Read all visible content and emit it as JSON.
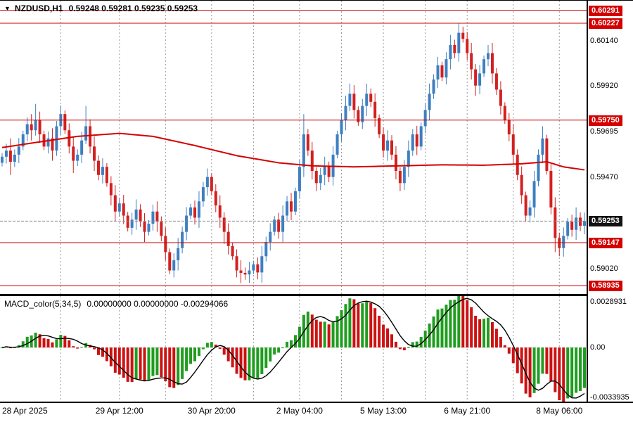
{
  "header": {
    "dropdown_icon": "▼",
    "symbol": "NZDUSD,H1",
    "ohlc": "0.59248 0.59281 0.59235 0.59253"
  },
  "macd_header": {
    "label": "MACD_color(5,34,5)",
    "values": "0.00000000 0.00000000 -0.00294066"
  },
  "colors": {
    "bull": "#3e7fc1",
    "bear": "#d32020",
    "ma": "#d40000",
    "level": "#c80000",
    "grid": "#9a9a9a",
    "hist_up": "#1f9d1f",
    "hist_down": "#cc1212",
    "signal": "#000000",
    "current_line": "#8a8a8a",
    "badge_red": "#d40000",
    "badge_black": "#121212"
  },
  "price_axis": [
    {
      "text": "0.60291",
      "value": 0.60291,
      "style": "badge-red"
    },
    {
      "text": "0.60227",
      "value": 0.60227,
      "style": "badge-red"
    },
    {
      "text": "0.60140",
      "value": 0.6014,
      "style": "plain"
    },
    {
      "text": "0.59920",
      "value": 0.5992,
      "style": "plain"
    },
    {
      "text": "0.59750",
      "value": 0.5975,
      "style": "badge-red"
    },
    {
      "text": "0.59695",
      "value": 0.59695,
      "style": "plain"
    },
    {
      "text": "0.59470",
      "value": 0.5947,
      "style": "plain"
    },
    {
      "text": "0.59253",
      "value": 0.59253,
      "style": "badge-black"
    },
    {
      "text": "0.59147",
      "value": 0.59147,
      "style": "badge-red"
    },
    {
      "text": "0.59020",
      "value": 0.5902,
      "style": "plain"
    },
    {
      "text": "0.58935",
      "value": 0.58935,
      "style": "badge-red"
    }
  ],
  "macd_axis": [
    {
      "text": "0.0028931",
      "value": 0.0028931
    },
    {
      "text": "0.00",
      "value": 0
    },
    {
      "text": "-0.0033935",
      "value": -0.0033935
    }
  ],
  "chart_data": {
    "type": "candlestick",
    "symbol": "NZDUSD",
    "timeframe": "H1",
    "indicators": [
      "MA (red)",
      "MACD_color(5,34,5)"
    ],
    "price_range": {
      "top": 0.60338,
      "bottom": 0.58894
    },
    "levels": [
      0.60291,
      0.60227,
      0.5975,
      0.59147,
      0.58935
    ],
    "current_price": 0.59253,
    "first_open": 0.5954,
    "closes": [
      0.5957,
      0.596,
      0.59545,
      0.5958,
      0.5962,
      0.5968,
      0.5973,
      0.597,
      0.5975,
      0.5968,
      0.5962,
      0.5966,
      0.596,
      0.5972,
      0.5978,
      0.597,
      0.5962,
      0.5955,
      0.5958,
      0.5965,
      0.5972,
      0.5962,
      0.5955,
      0.5948,
      0.5952,
      0.5944,
      0.5938,
      0.593,
      0.5934,
      0.5928,
      0.5922,
      0.5926,
      0.5931,
      0.5925,
      0.592,
      0.5924,
      0.593,
      0.5925,
      0.5918,
      0.591,
      0.5901,
      0.5906,
      0.5912,
      0.592,
      0.5928,
      0.5932,
      0.5927,
      0.5935,
      0.5942,
      0.5947,
      0.594,
      0.5933,
      0.5927,
      0.592,
      0.5913,
      0.5908,
      0.5901,
      0.58998,
      0.5899,
      0.5901,
      0.5904,
      0.59,
      0.5908,
      0.5915,
      0.592,
      0.5926,
      0.592,
      0.5928,
      0.5935,
      0.593,
      0.594,
      0.5952,
      0.5968,
      0.596,
      0.595,
      0.5944,
      0.5948,
      0.5952,
      0.5947,
      0.5958,
      0.5968,
      0.5975,
      0.5982,
      0.5988,
      0.598,
      0.5974,
      0.5982,
      0.5988,
      0.5984,
      0.5976,
      0.5968,
      0.596,
      0.5965,
      0.5958,
      0.595,
      0.5944,
      0.5952,
      0.596,
      0.5968,
      0.5962,
      0.5972,
      0.598,
      0.5988,
      0.5995,
      0.6002,
      0.5996,
      0.6005,
      0.6012,
      0.6008,
      0.6018,
      0.6015,
      0.6008,
      0.6,
      0.5992,
      0.5998,
      0.6005,
      0.6008,
      0.5998,
      0.599,
      0.5982,
      0.5975,
      0.5968,
      0.5958,
      0.5948,
      0.5938,
      0.5928,
      0.5932,
      0.5945,
      0.5958,
      0.5966,
      0.595,
      0.5932,
      0.5917,
      0.5912,
      0.5918,
      0.5925,
      0.5921,
      0.5927,
      0.5923,
      0.59253
    ],
    "spike_highs": {
      "2": 0.5966,
      "8": 0.5983,
      "14": 0.5982,
      "20": 0.5982,
      "49": 0.595,
      "72": 0.5978,
      "83": 0.5993,
      "87": 0.5992,
      "104": 0.6006,
      "107": 0.6016,
      "109": 0.60227,
      "110": 0.6021,
      "116": 0.6012,
      "129": 0.5972
    },
    "spike_lows": {
      "2": 0.5948,
      "17": 0.5949,
      "26": 0.5933,
      "34": 0.5915,
      "40": 0.58995,
      "53": 0.5914,
      "57": 0.58985,
      "58": 0.58975,
      "61": 0.58995,
      "75": 0.594,
      "95": 0.594,
      "113": 0.5987,
      "125": 0.5925,
      "132": 0.591,
      "133": 0.5908
    },
    "ma_waypoints": [
      [
        0,
        0.59615
      ],
      [
        8,
        0.5964
      ],
      [
        18,
        0.5967
      ],
      [
        28,
        0.59685
      ],
      [
        36,
        0.5967
      ],
      [
        46,
        0.59625
      ],
      [
        56,
        0.59575
      ],
      [
        66,
        0.5954
      ],
      [
        74,
        0.59525
      ],
      [
        84,
        0.5952
      ],
      [
        95,
        0.59525
      ],
      [
        105,
        0.5953
      ],
      [
        115,
        0.59528
      ],
      [
        124,
        0.59535
      ],
      [
        130,
        0.59545
      ],
      [
        134,
        0.5952
      ],
      [
        139,
        0.59505
      ]
    ],
    "macd": {
      "fast": 5,
      "slow": 34,
      "signal": 5,
      "range": {
        "top": 0.0028931,
        "bottom": -0.0033935
      }
    },
    "x_axis": {
      "ticks": [
        {
          "text": "28 Apr 2025",
          "index": 1,
          "align": "left"
        },
        {
          "text": "29 Apr 12:00",
          "index": 28
        },
        {
          "text": "30 Apr 20:00",
          "index": 50
        },
        {
          "text": "2 May 04:00",
          "index": 71
        },
        {
          "text": "5 May 13:00",
          "index": 91
        },
        {
          "text": "6 May 21:00",
          "index": 111
        },
        {
          "text": "8 May 06:00",
          "index": 133
        }
      ],
      "grid_indices": [
        14,
        28,
        39,
        50,
        60,
        71,
        81,
        91,
        101,
        111,
        122,
        133
      ]
    }
  }
}
